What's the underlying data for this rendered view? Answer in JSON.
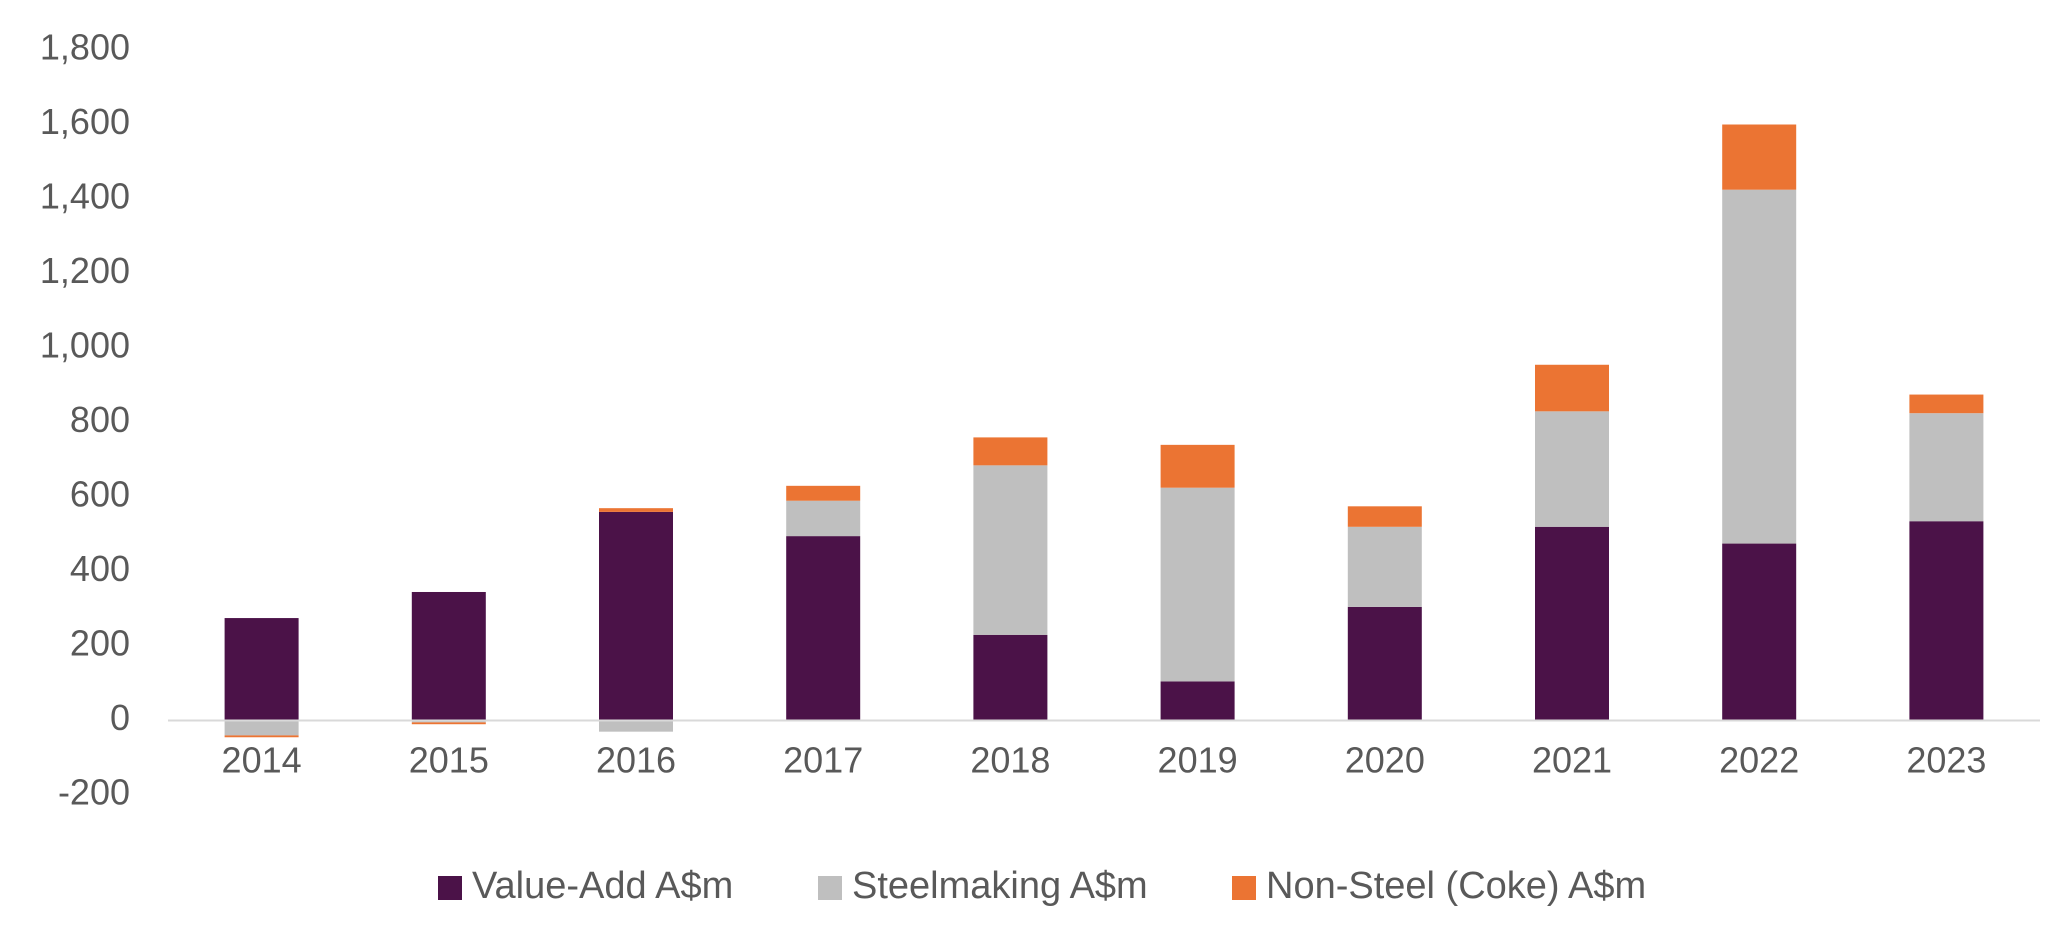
{
  "chart_data": {
    "type": "bar",
    "stacked": true,
    "categories": [
      "2014",
      "2015",
      "2016",
      "2017",
      "2018",
      "2019",
      "2020",
      "2021",
      "2022",
      "2023"
    ],
    "series": [
      {
        "name": "Value-Add A$m",
        "color": "#4B1248",
        "values": [
          275,
          345,
          560,
          495,
          230,
          105,
          305,
          520,
          475,
          535
        ]
      },
      {
        "name": "Steelmaking A$m",
        "color": "#BFBFBF",
        "values": [
          -40,
          -5,
          -30,
          95,
          455,
          520,
          215,
          310,
          950,
          290
        ]
      },
      {
        "name": "Non-Steel (Coke) A$m",
        "color": "#EB7433",
        "values": [
          -5,
          -5,
          10,
          40,
          75,
          115,
          55,
          125,
          175,
          50
        ]
      }
    ],
    "yticks": [
      "-200",
      "0",
      "200",
      "400",
      "600",
      "800",
      "1,000",
      "1,200",
      "1,400",
      "1,600",
      "1,800"
    ],
    "ylim": [
      -200,
      1800
    ],
    "grid": false,
    "legend_position": "bottom"
  }
}
